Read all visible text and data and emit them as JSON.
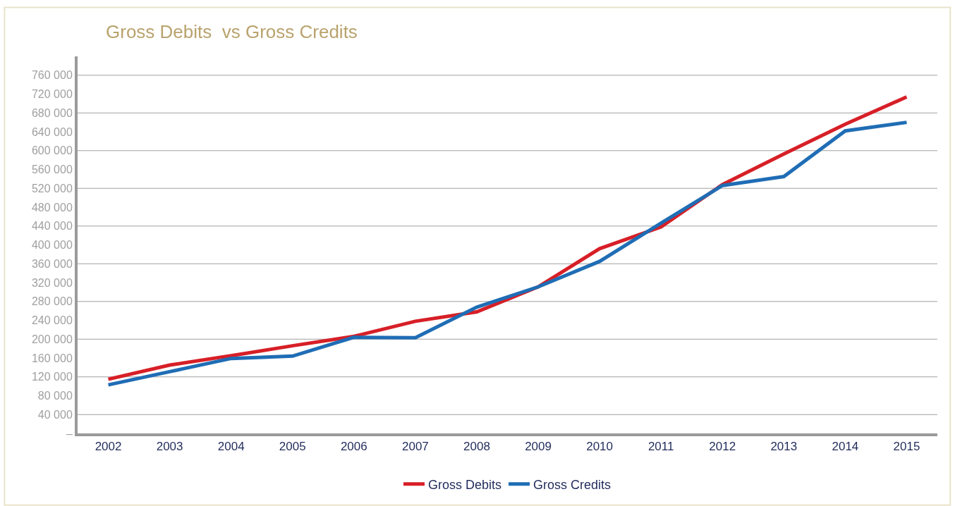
{
  "chart_data": {
    "type": "line",
    "title": "Gross Debits  vs Gross Credits",
    "categories": [
      "2002",
      "2003",
      "2004",
      "2005",
      "2006",
      "2007",
      "2008",
      "2009",
      "2010",
      "2011",
      "2012",
      "2013",
      "2014",
      "2015"
    ],
    "series": [
      {
        "name": "Gross Debits",
        "color": "#d71f27",
        "values": [
          115000,
          145000,
          165000,
          186000,
          206000,
          238000,
          258000,
          311000,
          392000,
          438000,
          528000,
          593000,
          656000,
          714000
        ]
      },
      {
        "name": "Gross Credits",
        "color": "#1f6db5",
        "values": [
          103000,
          131000,
          159000,
          164000,
          204000,
          203000,
          268000,
          311000,
          365000,
          446000,
          526000,
          545000,
          642000,
          660000
        ]
      }
    ],
    "ylim": [
      0,
      800000
    ],
    "yticks": [
      {
        "value": 0,
        "label": "–"
      },
      {
        "value": 40000,
        "label": "40 000"
      },
      {
        "value": 80000,
        "label": "80 000"
      },
      {
        "value": 120000,
        "label": "120 000"
      },
      {
        "value": 160000,
        "label": "160 000"
      },
      {
        "value": 200000,
        "label": "200 000"
      },
      {
        "value": 240000,
        "label": "240 000"
      },
      {
        "value": 280000,
        "label": "280 000"
      },
      {
        "value": 320000,
        "label": "320 000"
      },
      {
        "value": 360000,
        "label": "360 000"
      },
      {
        "value": 400000,
        "label": "400 000"
      },
      {
        "value": 440000,
        "label": "440 000"
      },
      {
        "value": 480000,
        "label": "480 000"
      },
      {
        "value": 520000,
        "label": "520 000"
      },
      {
        "value": 560000,
        "label": "560 000"
      },
      {
        "value": 600000,
        "label": "600 000"
      },
      {
        "value": 640000,
        "label": "640 000"
      },
      {
        "value": 680000,
        "label": "680 000"
      },
      {
        "value": 720000,
        "label": "720 000"
      },
      {
        "value": 760000,
        "label": "760 000"
      }
    ],
    "grid": "y",
    "legend": "bottom",
    "marker": "none",
    "line_style": "solid"
  }
}
